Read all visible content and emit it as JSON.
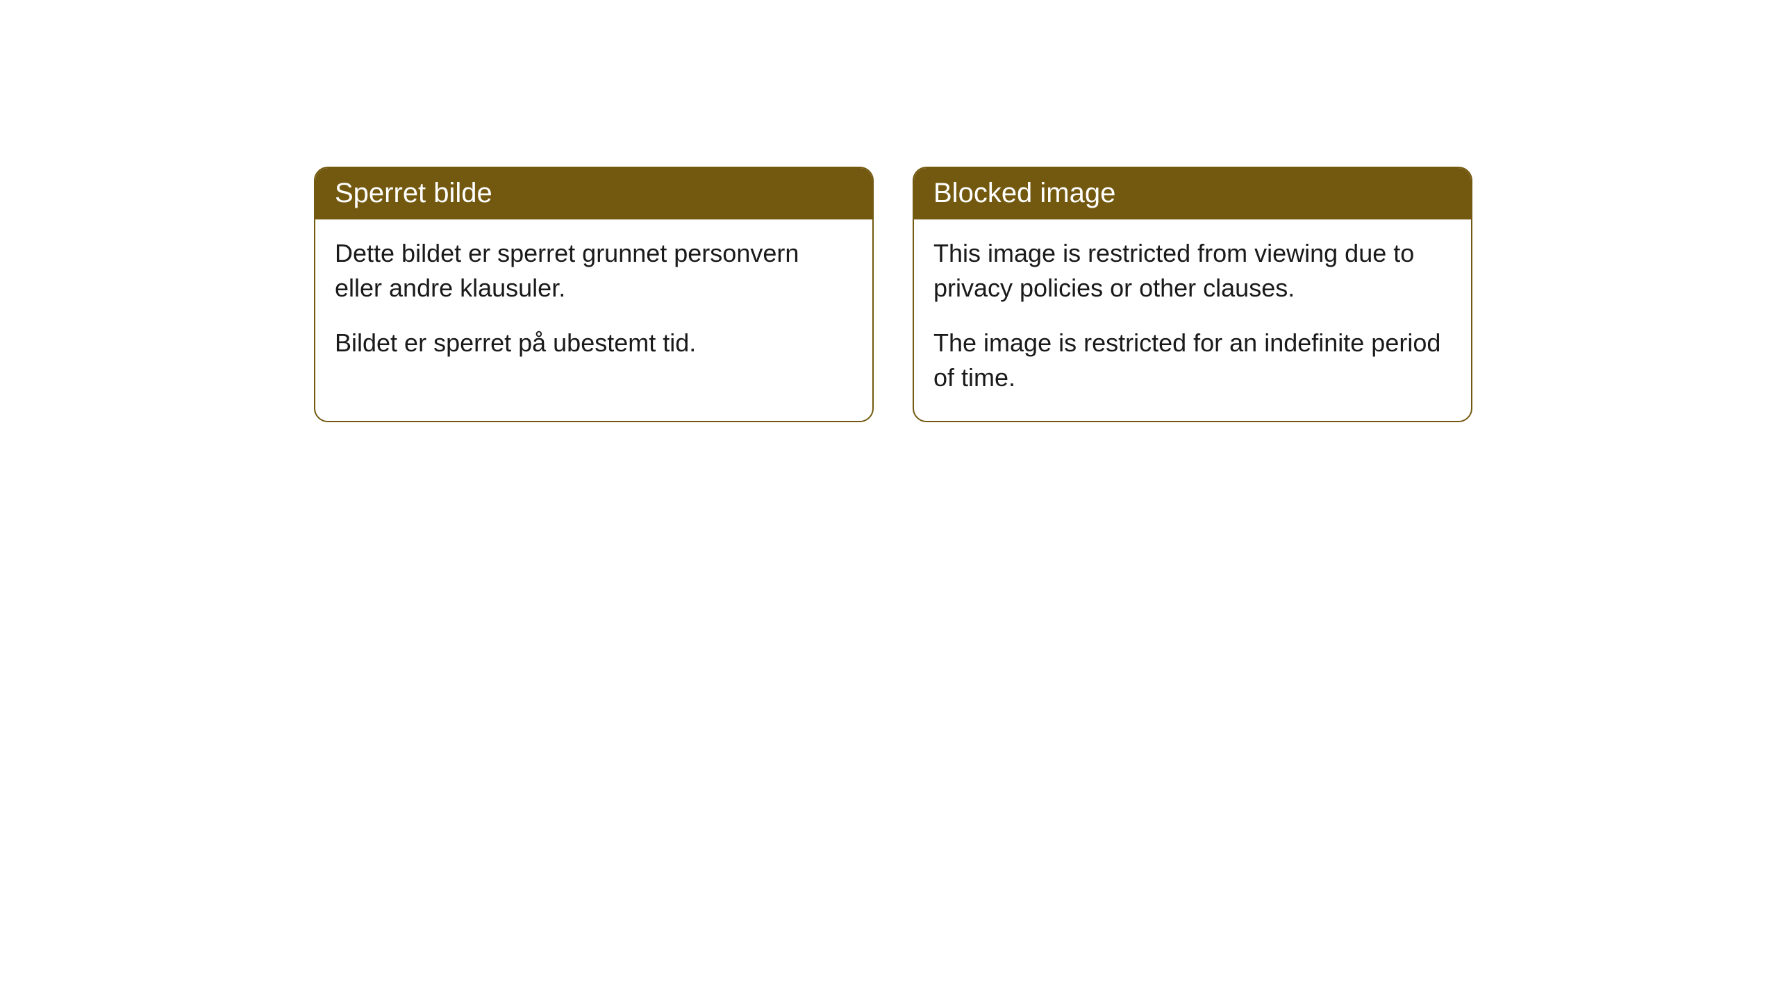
{
  "cards": [
    {
      "title": "Sperret bilde",
      "paragraph1": "Dette bildet er sperret grunnet personvern eller andre klausuler.",
      "paragraph2": "Bildet er sperret på ubestemt tid."
    },
    {
      "title": "Blocked image",
      "paragraph1": "This image is restricted from viewing due to privacy policies or other clauses.",
      "paragraph2": "The image is restricted for an indefinite period of time."
    }
  ],
  "styling": {
    "header_background": "#735910",
    "header_text_color": "#ffffff",
    "border_color": "#735910",
    "body_text_color": "#1a1a1a",
    "card_background": "#ffffff",
    "page_background": "#ffffff",
    "border_radius": 20,
    "header_fontsize": 40,
    "body_fontsize": 36
  }
}
